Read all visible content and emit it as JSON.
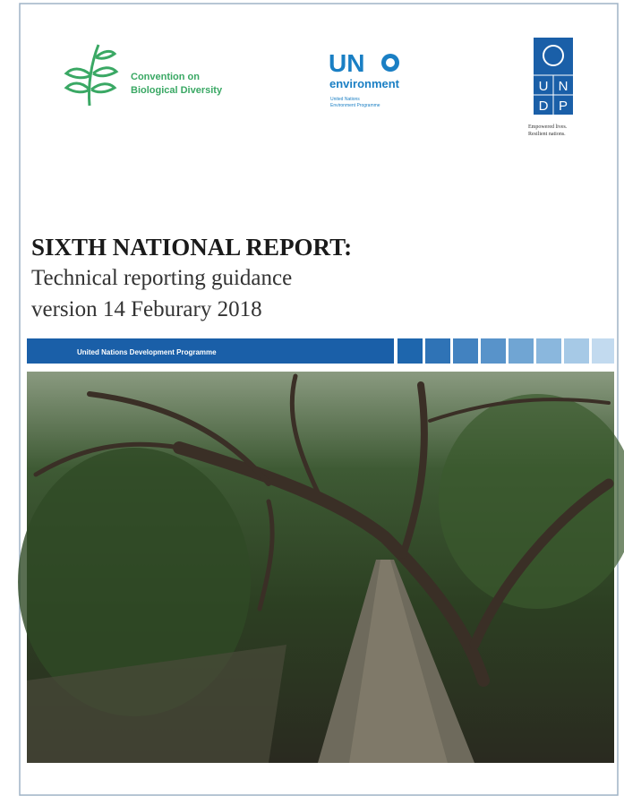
{
  "logos": {
    "cbd": {
      "line1": "Convention on",
      "line2": "Biological Diversity"
    },
    "unep": {
      "mark": "UN",
      "name": "environment",
      "line1": "United Nations",
      "line2": "Environment Programme"
    },
    "undp": {
      "letters": [
        "U",
        "N",
        "D",
        "P"
      ],
      "tagline1": "Empowered lives.",
      "tagline2": "Resilient nations."
    }
  },
  "title": {
    "heading": "SIXTH NATIONAL REPORT:",
    "line1": "Technical reporting guidance",
    "line2": "version 14 Feburary 2018"
  },
  "band": {
    "text": "United Nations Development Programme"
  }
}
